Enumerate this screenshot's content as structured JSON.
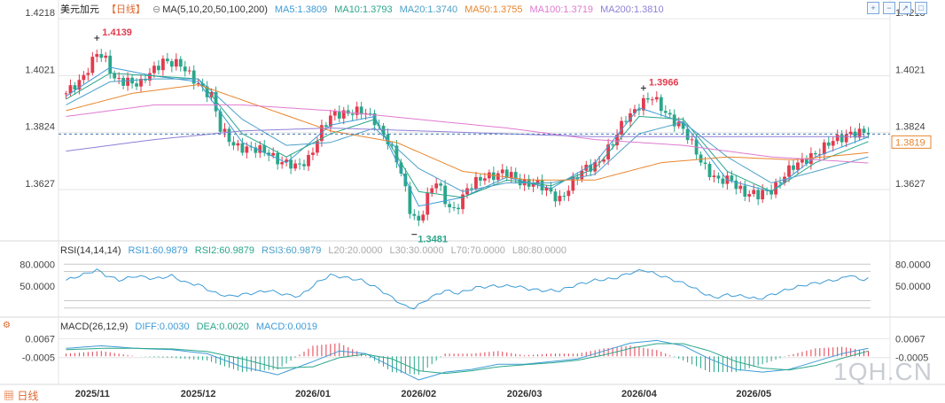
{
  "header": {
    "title": "美元加元",
    "period": "【日线】",
    "ma_label": "MA(5,10,20,50,100,200)",
    "ma_values": [
      {
        "label": "MA5:1.3809",
        "color": "#3d9bd6"
      },
      {
        "label": "MA10:1.3793",
        "color": "#2aa68a"
      },
      {
        "label": "MA20:1.3740",
        "color": "#4da0c8"
      },
      {
        "label": "MA50:1.3755",
        "color": "#e8862e"
      },
      {
        "label": "MA100:1.3719",
        "color": "#e07ad0"
      },
      {
        "label": "MA200:1.3810",
        "color": "#8f7fd6"
      }
    ],
    "toolbar_icons": [
      "zoom-in-icon",
      "zoom-out-icon",
      "expand-icon",
      "fullscreen-icon"
    ]
  },
  "rsi": {
    "label": "RSI(14,14,14)",
    "values": [
      {
        "label": "RSI1:60.9879",
        "color": "#3d9bd6"
      },
      {
        "label": "RSI2:60.9879",
        "color": "#2aa68a"
      },
      {
        "label": "RSI3:60.9879",
        "color": "#4da0c8"
      },
      {
        "label": "L20:20.0000",
        "color": "#aaaaaa"
      },
      {
        "label": "L30:30.0000",
        "color": "#aaaaaa"
      },
      {
        "label": "L70:70.0000",
        "color": "#aaaaaa"
      },
      {
        "label": "L80:80.0000",
        "color": "#aaaaaa"
      }
    ]
  },
  "macd": {
    "label": "MACD(26,12,9)",
    "values": [
      {
        "label": "DIFF:0.0030",
        "color": "#3d9bd6"
      },
      {
        "label": "DEA:0.0020",
        "color": "#2aa68a"
      },
      {
        "label": "MACD:0.0019",
        "color": "#3d9bd6"
      }
    ]
  },
  "footer": {
    "period_label": "日线",
    "watermark": "1QH.CN"
  },
  "colors": {
    "up": "#e23b4e",
    "down": "#2aa68a",
    "grid": "#e6e6e6",
    "current_price_line": "#3b76b8",
    "current_price_tag": "#e8862e"
  },
  "chart_data": {
    "type": "candlestick",
    "title": "美元加元",
    "price_axis": {
      "ticks": [
        "1.4218",
        "1.4021",
        "1.3824",
        "1.3627"
      ],
      "tick_values": [
        1.4218,
        1.4021,
        1.3824,
        1.3627
      ],
      "range": [
        1.348,
        1.424
      ]
    },
    "x_axis": {
      "ticks": [
        "2025/11",
        "2025/12",
        "2026/01",
        "2026/02",
        "2026/03",
        "2026/04",
        "2026/05"
      ],
      "tick_index": [
        6,
        30,
        56,
        80,
        104,
        130,
        156
      ]
    },
    "annotations": [
      {
        "text": "1.4139",
        "index": 7,
        "value": 1.4139,
        "color": "#e23b4e",
        "kind": "high"
      },
      {
        "text": "1.3481",
        "index": 79,
        "value": 1.3481,
        "color": "#2aa68a",
        "kind": "low"
      },
      {
        "text": "1.3966",
        "index": 131,
        "value": 1.3966,
        "color": "#e23b4e",
        "kind": "high"
      }
    ],
    "current_price": 1.3819,
    "current_price_label": "1.3819",
    "price_anchors": [
      [
        0,
        1.396
      ],
      [
        3,
        1.399
      ],
      [
        5,
        1.405
      ],
      [
        7,
        1.411
      ],
      [
        9,
        1.407
      ],
      [
        11,
        1.4
      ],
      [
        14,
        1.401
      ],
      [
        17,
        1.399
      ],
      [
        20,
        1.404
      ],
      [
        22,
        1.408
      ],
      [
        24,
        1.407
      ],
      [
        26,
        1.405
      ],
      [
        28,
        1.402
      ],
      [
        30,
        1.4
      ],
      [
        33,
        1.395
      ],
      [
        35,
        1.383
      ],
      [
        38,
        1.379
      ],
      [
        42,
        1.376
      ],
      [
        46,
        1.376
      ],
      [
        49,
        1.372
      ],
      [
        52,
        1.37
      ],
      [
        55,
        1.374
      ],
      [
        58,
        1.383
      ],
      [
        61,
        1.389
      ],
      [
        64,
        1.39
      ],
      [
        67,
        1.389
      ],
      [
        70,
        1.387
      ],
      [
        73,
        1.38
      ],
      [
        76,
        1.368
      ],
      [
        78,
        1.356
      ],
      [
        80,
        1.352
      ],
      [
        82,
        1.36
      ],
      [
        84,
        1.365
      ],
      [
        86,
        1.359
      ],
      [
        88,
        1.356
      ],
      [
        91,
        1.362
      ],
      [
        95,
        1.368
      ],
      [
        99,
        1.368
      ],
      [
        103,
        1.366
      ],
      [
        106,
        1.365
      ],
      [
        109,
        1.362
      ],
      [
        112,
        1.36
      ],
      [
        115,
        1.365
      ],
      [
        118,
        1.37
      ],
      [
        121,
        1.373
      ],
      [
        124,
        1.378
      ],
      [
        127,
        1.388
      ],
      [
        130,
        1.392
      ],
      [
        133,
        1.394
      ],
      [
        136,
        1.39
      ],
      [
        139,
        1.385
      ],
      [
        142,
        1.378
      ],
      [
        145,
        1.371
      ],
      [
        148,
        1.365
      ],
      [
        151,
        1.366
      ],
      [
        154,
        1.362
      ],
      [
        157,
        1.36
      ],
      [
        160,
        1.363
      ],
      [
        163,
        1.368
      ],
      [
        166,
        1.371
      ],
      [
        169,
        1.375
      ],
      [
        172,
        1.377
      ],
      [
        175,
        1.38
      ],
      [
        178,
        1.383
      ],
      [
        180,
        1.382
      ],
      [
        182,
        1.3819
      ]
    ],
    "ma_anchors": {
      "MA5": [
        [
          0,
          1.395
        ],
        [
          10,
          1.405
        ],
        [
          20,
          1.402
        ],
        [
          30,
          1.4
        ],
        [
          40,
          1.379
        ],
        [
          50,
          1.372
        ],
        [
          60,
          1.385
        ],
        [
          70,
          1.388
        ],
        [
          80,
          1.357
        ],
        [
          90,
          1.36
        ],
        [
          100,
          1.367
        ],
        [
          110,
          1.363
        ],
        [
          120,
          1.372
        ],
        [
          130,
          1.391
        ],
        [
          140,
          1.386
        ],
        [
          150,
          1.366
        ],
        [
          160,
          1.362
        ],
        [
          170,
          1.374
        ],
        [
          182,
          1.3809
        ]
      ],
      "MA10": [
        [
          0,
          1.394
        ],
        [
          10,
          1.403
        ],
        [
          20,
          1.402
        ],
        [
          30,
          1.401
        ],
        [
          40,
          1.382
        ],
        [
          50,
          1.374
        ],
        [
          60,
          1.382
        ],
        [
          70,
          1.387
        ],
        [
          80,
          1.362
        ],
        [
          90,
          1.36
        ],
        [
          100,
          1.366
        ],
        [
          110,
          1.364
        ],
        [
          120,
          1.37
        ],
        [
          130,
          1.388
        ],
        [
          140,
          1.387
        ],
        [
          150,
          1.369
        ],
        [
          160,
          1.362
        ],
        [
          170,
          1.372
        ],
        [
          182,
          1.3793
        ]
      ],
      "MA20": [
        [
          0,
          1.392
        ],
        [
          10,
          1.4
        ],
        [
          20,
          1.401
        ],
        [
          30,
          1.401
        ],
        [
          40,
          1.387
        ],
        [
          50,
          1.378
        ],
        [
          60,
          1.379
        ],
        [
          70,
          1.384
        ],
        [
          80,
          1.37
        ],
        [
          90,
          1.362
        ],
        [
          100,
          1.365
        ],
        [
          110,
          1.365
        ],
        [
          120,
          1.368
        ],
        [
          130,
          1.382
        ],
        [
          140,
          1.386
        ],
        [
          150,
          1.374
        ],
        [
          160,
          1.365
        ],
        [
          170,
          1.369
        ],
        [
          182,
          1.374
        ]
      ],
      "MA50": [
        [
          0,
          1.39
        ],
        [
          15,
          1.396
        ],
        [
          30,
          1.399
        ],
        [
          45,
          1.391
        ],
        [
          60,
          1.383
        ],
        [
          75,
          1.379
        ],
        [
          90,
          1.369
        ],
        [
          105,
          1.366
        ],
        [
          120,
          1.366
        ],
        [
          135,
          1.372
        ],
        [
          150,
          1.374
        ],
        [
          165,
          1.373
        ],
        [
          182,
          1.3755
        ]
      ],
      "MA100": [
        [
          0,
          1.388
        ],
        [
          20,
          1.392
        ],
        [
          40,
          1.392
        ],
        [
          60,
          1.39
        ],
        [
          80,
          1.387
        ],
        [
          100,
          1.384
        ],
        [
          120,
          1.38
        ],
        [
          140,
          1.378
        ],
        [
          160,
          1.374
        ],
        [
          182,
          1.3719
        ]
      ],
      "MA200": [
        [
          0,
          1.376
        ],
        [
          20,
          1.38
        ],
        [
          40,
          1.383
        ],
        [
          60,
          1.384
        ],
        [
          80,
          1.383
        ],
        [
          100,
          1.382
        ],
        [
          120,
          1.381
        ],
        [
          140,
          1.381
        ],
        [
          160,
          1.381
        ],
        [
          182,
          1.381
        ]
      ]
    },
    "rsi_axis": {
      "ticks": [
        "80.0000",
        "50.0000"
      ],
      "tick_values": [
        80,
        50
      ],
      "range": [
        10,
        90
      ],
      "levels": [
        20,
        30,
        70,
        80
      ]
    },
    "rsi_anchors": [
      [
        0,
        58
      ],
      [
        4,
        66
      ],
      [
        7,
        72
      ],
      [
        9,
        65
      ],
      [
        12,
        58
      ],
      [
        16,
        64
      ],
      [
        20,
        60
      ],
      [
        24,
        64
      ],
      [
        27,
        55
      ],
      [
        30,
        52
      ],
      [
        34,
        40
      ],
      [
        37,
        36
      ],
      [
        42,
        40
      ],
      [
        46,
        44
      ],
      [
        50,
        38
      ],
      [
        53,
        36
      ],
      [
        57,
        55
      ],
      [
        60,
        65
      ],
      [
        63,
        62
      ],
      [
        67,
        58
      ],
      [
        71,
        46
      ],
      [
        74,
        34
      ],
      [
        77,
        22
      ],
      [
        79,
        20
      ],
      [
        82,
        32
      ],
      [
        86,
        44
      ],
      [
        89,
        40
      ],
      [
        93,
        48
      ],
      [
        97,
        50
      ],
      [
        102,
        50
      ],
      [
        105,
        46
      ],
      [
        108,
        44
      ],
      [
        112,
        44
      ],
      [
        116,
        52
      ],
      [
        120,
        58
      ],
      [
        124,
        60
      ],
      [
        128,
        68
      ],
      [
        131,
        72
      ],
      [
        134,
        66
      ],
      [
        137,
        60
      ],
      [
        141,
        52
      ],
      [
        144,
        42
      ],
      [
        147,
        34
      ],
      [
        150,
        38
      ],
      [
        154,
        36
      ],
      [
        157,
        32
      ],
      [
        160,
        38
      ],
      [
        164,
        46
      ],
      [
        168,
        52
      ],
      [
        172,
        56
      ],
      [
        176,
        60
      ],
      [
        178,
        66
      ],
      [
        180,
        58
      ],
      [
        182,
        61
      ]
    ],
    "macd_axis": {
      "ticks": [
        "0.0067",
        "-0.0005"
      ],
      "tick_values": [
        0.0067,
        -0.0005
      ],
      "range": [
        -0.01,
        0.0095
      ]
    },
    "diff_anchors": [
      [
        0,
        0.003
      ],
      [
        8,
        0.004
      ],
      [
        16,
        0.003
      ],
      [
        24,
        0.0025
      ],
      [
        32,
        0.001
      ],
      [
        40,
        -0.004
      ],
      [
        48,
        -0.007
      ],
      [
        56,
        -0.002
      ],
      [
        62,
        0.002
      ],
      [
        68,
        0.001
      ],
      [
        74,
        -0.004
      ],
      [
        80,
        -0.009
      ],
      [
        86,
        -0.006
      ],
      [
        92,
        -0.005
      ],
      [
        98,
        -0.003
      ],
      [
        104,
        -0.003
      ],
      [
        110,
        -0.002
      ],
      [
        116,
        -0.001
      ],
      [
        122,
        0.002
      ],
      [
        128,
        0.005
      ],
      [
        134,
        0.006
      ],
      [
        140,
        0.004
      ],
      [
        146,
        -0.001
      ],
      [
        152,
        -0.005
      ],
      [
        158,
        -0.006
      ],
      [
        164,
        -0.005
      ],
      [
        170,
        -0.002
      ],
      [
        176,
        0.001
      ],
      [
        182,
        0.003
      ]
    ],
    "dea_anchors": [
      [
        0,
        0.0025
      ],
      [
        8,
        0.003
      ],
      [
        16,
        0.003
      ],
      [
        24,
        0.0028
      ],
      [
        32,
        0.0018
      ],
      [
        40,
        -0.001
      ],
      [
        48,
        -0.0045
      ],
      [
        56,
        -0.004
      ],
      [
        62,
        -0.0005
      ],
      [
        68,
        0.0008
      ],
      [
        74,
        -0.001
      ],
      [
        80,
        -0.0055
      ],
      [
        86,
        -0.0065
      ],
      [
        92,
        -0.0055
      ],
      [
        98,
        -0.004
      ],
      [
        104,
        -0.0032
      ],
      [
        110,
        -0.0025
      ],
      [
        116,
        -0.0015
      ],
      [
        122,
        0.0005
      ],
      [
        128,
        0.003
      ],
      [
        134,
        0.0048
      ],
      [
        140,
        0.0048
      ],
      [
        146,
        0.002
      ],
      [
        152,
        -0.002
      ],
      [
        158,
        -0.0045
      ],
      [
        164,
        -0.0052
      ],
      [
        170,
        -0.0035
      ],
      [
        176,
        -0.0008
      ],
      [
        182,
        0.002
      ]
    ]
  }
}
